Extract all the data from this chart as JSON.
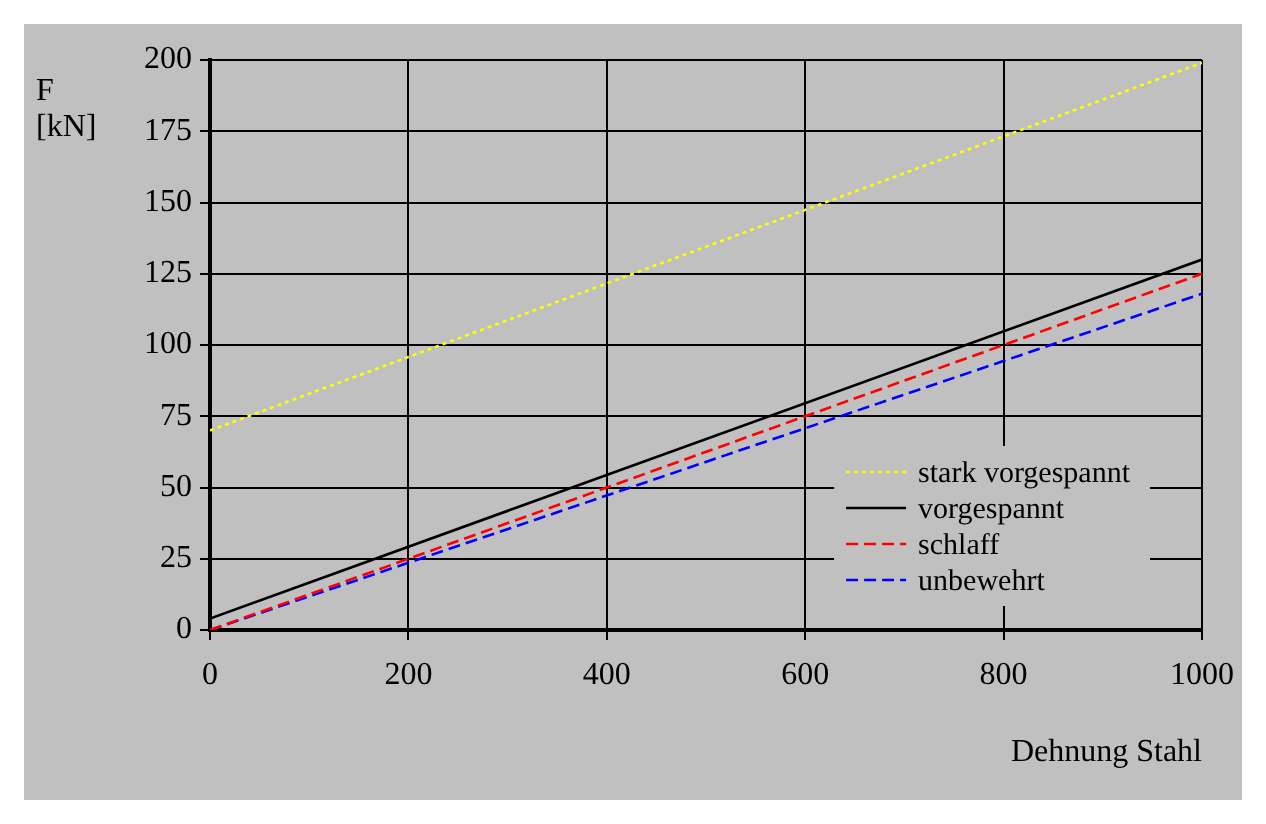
{
  "chart_data": {
    "type": "line",
    "xlabel": "Dehnung Stahl",
    "ylabel": "F\n[kN]",
    "xlim": [
      0,
      1000
    ],
    "xticks": [
      0,
      200,
      400,
      600,
      800,
      1000
    ],
    "ylim": [
      0,
      200
    ],
    "yticks": [
      0,
      25,
      50,
      75,
      100,
      125,
      150,
      175,
      200
    ],
    "grid": true,
    "legend": "bottom right",
    "marker": "none",
    "x": [
      0,
      1000
    ],
    "series": [
      {
        "name": "stark vorgespannt",
        "color": "#ffff00",
        "values": [
          70,
          199
        ],
        "line_style": "dotted"
      },
      {
        "name": "vorgespannt",
        "color": "#000000",
        "values": [
          4,
          130
        ],
        "line_style": "solid"
      },
      {
        "name": "schlaff",
        "color": "#ff0000",
        "values": [
          0,
          125
        ],
        "line_style": "dashed"
      },
      {
        "name": "unbewehrt",
        "color": "#0000ff",
        "values": [
          0,
          118
        ],
        "line_style": "dashed"
      }
    ]
  }
}
